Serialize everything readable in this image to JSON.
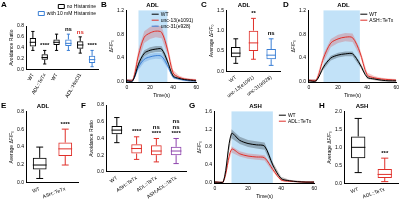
{
  "chart_data": [
    {
      "type": "box",
      "panel_label": "A",
      "ylabel": "Avoidance Ratio",
      "categories": [
        "WT",
        "ADL::TeTx",
        "WT",
        null,
        "ADL::HisCl1",
        null
      ],
      "series": [
        {
          "name": "no Histamine",
          "color": "#000000",
          "boxes": [
            {
              "min": 0.35,
              "q1": 0.42,
              "median": 0.5,
              "q3": 0.58,
              "max": 0.7
            },
            {
              "min": 0.1,
              "q1": 0.18,
              "median": 0.22,
              "q3": 0.28,
              "max": 0.35
            },
            {
              "min": 0.35,
              "q1": 0.45,
              "median": 0.5,
              "q3": 0.55,
              "max": 0.65
            },
            null,
            {
              "min": 0.3,
              "q1": 0.38,
              "median": 0.45,
              "q3": 0.52,
              "max": 0.6
            },
            null
          ]
        },
        {
          "name": "with 10 mM Histamine",
          "color": "#3a7fd5",
          "boxes": [
            null,
            null,
            null,
            {
              "min": 0.35,
              "q1": 0.43,
              "median": 0.48,
              "q3": 0.55,
              "max": 0.65
            },
            null,
            {
              "min": 0.05,
              "q1": 0.12,
              "median": 0.18,
              "q3": 0.25,
              "max": 0.35
            }
          ]
        }
      ],
      "annotations": [
        {
          "text": "****",
          "at": 1
        },
        {
          "text": "ns",
          "at": 3
        },
        {
          "text": "ns",
          "at": 4,
          "color": "#e0302a"
        },
        {
          "text": "****",
          "at": 5
        }
      ],
      "ylim": [
        0,
        0.8
      ],
      "yticks": [
        {
          "value": 0,
          "label": "0.0"
        },
        0.2,
        0.4,
        0.6,
        0.8
      ],
      "legend": "top",
      "grid": false
    },
    {
      "type": "line",
      "panel_label": "B",
      "title": "ADL",
      "xlabel": "Time(s)",
      "ylabel": "ΔF/F₀",
      "x": [
        0,
        5,
        10,
        15,
        20,
        25,
        30,
        35,
        40,
        45,
        50,
        55,
        60
      ],
      "shaded_x": [
        10,
        35
      ],
      "series": [
        {
          "name": "WT",
          "color": "#000000",
          "values": [
            0.02,
            0.02,
            0.3,
            0.48,
            0.53,
            0.55,
            0.55,
            0.35,
            0.1,
            0.06,
            0.04,
            0.03,
            0.02
          ],
          "error": [
            0.02,
            0.02,
            0.05,
            0.05,
            0.05,
            0.05,
            0.05,
            0.05,
            0.03,
            0.02,
            0.02,
            0.02,
            0.02
          ]
        },
        {
          "name": "unc-13(e1091)",
          "color": "#e0302a",
          "values": [
            0.03,
            0.03,
            0.45,
            0.75,
            0.82,
            0.85,
            0.83,
            0.55,
            0.15,
            0.08,
            0.05,
            0.04,
            0.03
          ],
          "error": [
            0.02,
            0.02,
            0.1,
            0.1,
            0.1,
            0.1,
            0.1,
            0.08,
            0.05,
            0.03,
            0.02,
            0.02,
            0.02
          ]
        },
        {
          "name": "unc-31(e928)",
          "color": "#3a7fd5",
          "values": [
            0.02,
            0.02,
            0.25,
            0.38,
            0.42,
            0.44,
            0.43,
            0.28,
            0.08,
            0.05,
            0.03,
            0.02,
            0.02
          ],
          "error": [
            0.02,
            0.02,
            0.05,
            0.05,
            0.05,
            0.05,
            0.05,
            0.04,
            0.03,
            0.02,
            0.02,
            0.02,
            0.02
          ]
        }
      ],
      "xlim": [
        0,
        60
      ],
      "xticks": [
        0,
        20,
        40,
        60
      ],
      "ylim": [
        0,
        1.2
      ],
      "yticks": [
        {
          "value": 0,
          "label": "0.0"
        },
        0.4,
        0.8,
        1.2
      ],
      "legend": "top-right",
      "grid": false
    },
    {
      "type": "box",
      "panel_label": "C",
      "title": "ADL",
      "ylabel": "Average ΔF/F₀",
      "categories": [
        "WT",
        "unc-13(e1091)",
        "unc-31(e928)"
      ],
      "series": [
        {
          "colors": [
            "#000000",
            "#e0302a",
            "#3a7fd5"
          ],
          "boxes": [
            {
              "min": 0.2,
              "q1": 0.35,
              "median": 0.45,
              "q3": 0.6,
              "max": 0.8
            },
            {
              "min": 0.3,
              "q1": 0.5,
              "median": 0.7,
              "q3": 1.0,
              "max": 1.3
            },
            {
              "min": 0.15,
              "q1": 0.3,
              "median": 0.4,
              "q3": 0.55,
              "max": 0.8
            }
          ]
        }
      ],
      "annotations": [
        {
          "text": "**",
          "at": 1
        },
        {
          "text": "ns",
          "at": 2
        }
      ],
      "ylim": [
        0,
        1.5
      ],
      "yticks": [
        {
          "value": 0,
          "label": "0.0"
        },
        0.5,
        {
          "value": 1,
          "label": "1.0"
        },
        1.5
      ],
      "grid": false
    },
    {
      "type": "line",
      "panel_label": "D",
      "title": "ADL",
      "xlabel": "Time(s)",
      "ylabel": "ΔF/F₀",
      "x": [
        0,
        5,
        10,
        15,
        20,
        25,
        30,
        35,
        40,
        45,
        50,
        55,
        60
      ],
      "shaded_x": [
        10,
        35
      ],
      "series": [
        {
          "name": "WT",
          "color": "#000000",
          "values": [
            0.02,
            0.02,
            0.25,
            0.4,
            0.45,
            0.47,
            0.47,
            0.3,
            0.08,
            0.05,
            0.03,
            0.02,
            0.02
          ],
          "error": [
            0.02,
            0.02,
            0.04,
            0.04,
            0.04,
            0.04,
            0.04,
            0.04,
            0.03,
            0.02,
            0.02,
            0.02,
            0.02
          ]
        },
        {
          "name": "ASH::TeTx",
          "color": "#e0302a",
          "values": [
            0.03,
            0.03,
            0.4,
            0.65,
            0.72,
            0.75,
            0.74,
            0.5,
            0.12,
            0.07,
            0.05,
            0.04,
            0.03
          ],
          "error": [
            0.02,
            0.02,
            0.07,
            0.07,
            0.07,
            0.07,
            0.07,
            0.06,
            0.04,
            0.03,
            0.02,
            0.02,
            0.02
          ]
        }
      ],
      "xlim": [
        0,
        60
      ],
      "xticks": [
        0,
        20,
        40,
        60
      ],
      "ylim": [
        0,
        1.2
      ],
      "yticks": [
        {
          "value": 0,
          "label": "0.0"
        },
        0.4,
        0.8,
        1.2
      ],
      "legend": "top-right",
      "grid": false
    },
    {
      "type": "box",
      "panel_label": "E",
      "title": "ADL",
      "ylabel": "Average ΔF/F₀",
      "categories": [
        "WT",
        "ASH::TeTx"
      ],
      "series": [
        {
          "colors": [
            "#000000",
            "#e0302a"
          ],
          "boxes": [
            {
              "min": 0.05,
              "q1": 0.15,
              "median": 0.2,
              "q3": 0.28,
              "max": 0.4
            },
            {
              "min": 0.2,
              "q1": 0.3,
              "median": 0.38,
              "q3": 0.45,
              "max": 0.6
            }
          ]
        }
      ],
      "annotations": [
        {
          "text": "****",
          "at": 1
        }
      ],
      "ylim": [
        0,
        0.8
      ],
      "yticks": [
        {
          "value": 0,
          "label": "0.0"
        },
        0.2,
        0.4,
        0.6,
        0.8
      ],
      "grid": false
    },
    {
      "type": "box",
      "panel_label": "F",
      "ylabel": "Avoidance Ratio",
      "categories": [
        "WT",
        "ASH::TeTx",
        "ADL::TeTx",
        "ASH;ADL::TeTx"
      ],
      "series": [
        {
          "colors": [
            "#000000",
            "#e0302a",
            "#e0302a",
            "#8e44ad"
          ],
          "boxes": [
            {
              "min": 0.35,
              "q1": 0.45,
              "median": 0.5,
              "q3": 0.55,
              "max": 0.65
            },
            {
              "min": 0.15,
              "q1": 0.22,
              "median": 0.28,
              "q3": 0.33,
              "max": 0.42
            },
            {
              "min": 0.12,
              "q1": 0.2,
              "median": 0.25,
              "q3": 0.32,
              "max": 0.4
            },
            {
              "min": 0.1,
              "q1": 0.2,
              "median": 0.25,
              "q3": 0.3,
              "max": 0.4
            }
          ]
        }
      ],
      "annotations": [
        {
          "text": "****",
          "at": 1
        },
        {
          "text": "****",
          "at": 2
        },
        {
          "text": "****",
          "at": 3
        },
        {
          "text": "ns",
          "at": 2
        },
        {
          "text": "ns",
          "at": 3
        },
        {
          "text": "ns",
          "at": 3
        }
      ],
      "ylim": [
        0,
        0.8
      ],
      "yticks": [
        {
          "value": 0,
          "label": "0.0"
        },
        0.2,
        0.4,
        0.6,
        0.8
      ],
      "grid": false
    },
    {
      "type": "line",
      "panel_label": "G",
      "title": "ASH",
      "xlabel": "Time(s)",
      "ylabel": "ΔF/F₀",
      "x": [
        0,
        5,
        10,
        15,
        20,
        25,
        30,
        35,
        40,
        45,
        50,
        55,
        60
      ],
      "shaded_x": [
        10,
        35
      ],
      "series": [
        {
          "name": "WT",
          "color": "#000000",
          "values": [
            0.02,
            0.02,
            1.1,
            0.95,
            0.88,
            0.85,
            0.82,
            0.4,
            0.1,
            0.05,
            0.03,
            0.02,
            0.02
          ],
          "error": [
            0.02,
            0.02,
            0.1,
            0.08,
            0.08,
            0.08,
            0.08,
            0.06,
            0.04,
            0.02,
            0.02,
            0.02,
            0.02
          ]
        },
        {
          "name": "ADL::TeTx",
          "color": "#e0302a",
          "values": [
            0.02,
            0.02,
            0.75,
            0.65,
            0.6,
            0.58,
            0.56,
            0.3,
            0.07,
            0.04,
            0.03,
            0.02,
            0.02
          ],
          "error": [
            0.02,
            0.02,
            0.07,
            0.06,
            0.06,
            0.06,
            0.06,
            0.05,
            0.03,
            0.02,
            0.02,
            0.02,
            0.02
          ]
        }
      ],
      "xlim": [
        0,
        60
      ],
      "xticks": [
        0,
        20,
        40,
        60
      ],
      "ylim": [
        0,
        1.6
      ],
      "yticks": [
        {
          "value": 0,
          "label": "0.0"
        },
        0.4,
        0.8,
        1.2,
        1.6
      ],
      "legend": "top-right",
      "grid": false
    },
    {
      "type": "box",
      "panel_label": "H",
      "title": "ASH",
      "ylabel": "Average ΔF/F₀",
      "categories": [
        "WT",
        "ADL::TeTx"
      ],
      "series": [
        {
          "colors": [
            "#000000",
            "#e0302a"
          ],
          "boxes": [
            {
              "min": 0.3,
              "q1": 0.7,
              "median": 1.0,
              "q3": 1.3,
              "max": 1.8
            },
            {
              "min": 0.05,
              "q1": 0.15,
              "median": 0.25,
              "q3": 0.4,
              "max": 0.7
            }
          ]
        }
      ],
      "annotations": [
        {
          "text": "***",
          "at": 1
        }
      ],
      "ylim": [
        0,
        2
      ],
      "yticks": [
        {
          "value": 0,
          "label": "0.0"
        },
        0.5,
        {
          "value": 1,
          "label": "1.0"
        },
        1.5,
        {
          "value": 2,
          "label": "2.0"
        }
      ],
      "grid": false
    }
  ]
}
